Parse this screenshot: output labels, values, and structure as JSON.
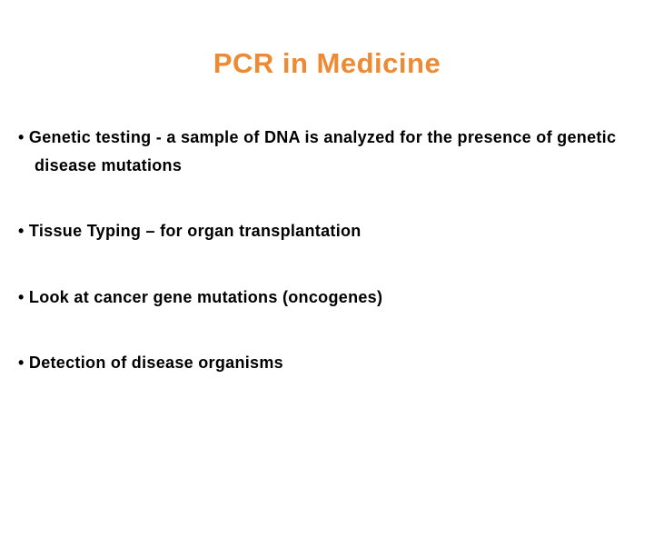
{
  "slide": {
    "title": "PCR in Medicine",
    "title_color": "#ed8a33",
    "title_fontsize": 31,
    "background_color": "#ffffff",
    "text_color": "#000000",
    "bullet_fontsize": 18,
    "bullets": [
      "Genetic testing - a sample of DNA is analyzed for the presence of genetic disease mutations",
      "Tissue Typing – for organ transplantation",
      "Look at cancer gene mutations (oncogenes)",
      "Detection of disease organisms"
    ]
  }
}
